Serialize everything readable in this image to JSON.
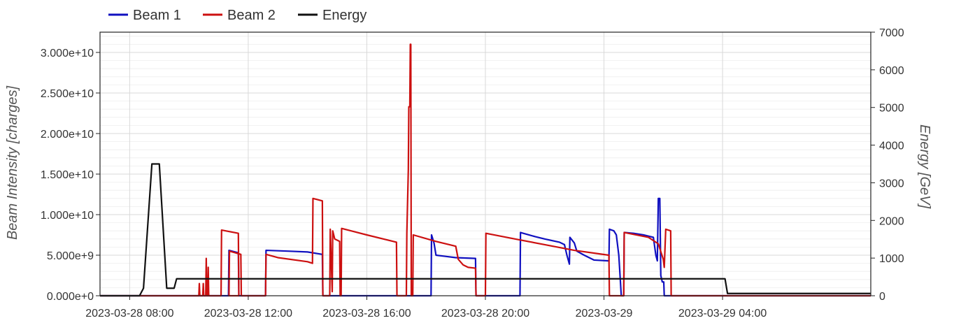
{
  "chart_data": {
    "type": "line",
    "title": "",
    "legend": {
      "placement": "top-left",
      "entries": [
        {
          "name": "Beam 1",
          "color": "#1010c0"
        },
        {
          "name": "Beam 2",
          "color": "#cc1010"
        },
        {
          "name": "Energy",
          "color": "#111111"
        }
      ]
    },
    "xaxis": {
      "range": [
        "2023-03-28 07:00",
        "2023-03-29 09:00"
      ],
      "ticks": [
        {
          "t": "2023-03-28 08:00",
          "label": "2023-03-28 08:00"
        },
        {
          "t": "2023-03-28 12:00",
          "label": "2023-03-28 12:00"
        },
        {
          "t": "2023-03-28 16:00",
          "label": "2023-03-28 16:00"
        },
        {
          "t": "2023-03-28 20:00",
          "label": "2023-03-28 20:00"
        },
        {
          "t": "2023-03-29 00:00",
          "label": "2023-03-29"
        },
        {
          "t": "2023-03-29 04:00",
          "label": "2023-03-29 04:00"
        }
      ]
    },
    "yaxis_left": {
      "label": "Beam Intensity [charges]",
      "range": [
        0,
        32500000000.0
      ],
      "ticks": [
        {
          "v": 0,
          "label": "0.000e+0"
        },
        {
          "v": 5000000000.0,
          "label": "5.000e+9"
        },
        {
          "v": 10000000000.0,
          "label": "1.000e+10"
        },
        {
          "v": 15000000000.0,
          "label": "1.500e+10"
        },
        {
          "v": 20000000000.0,
          "label": "2.000e+10"
        },
        {
          "v": 25000000000.0,
          "label": "2.500e+10"
        },
        {
          "v": 30000000000.0,
          "label": "3.000e+10"
        }
      ]
    },
    "yaxis_right": {
      "label": "Energy [GeV]",
      "range": [
        0,
        7000
      ],
      "ticks": [
        {
          "v": 0,
          "label": "0"
        },
        {
          "v": 1000,
          "label": "1000"
        },
        {
          "v": 2000,
          "label": "2000"
        },
        {
          "v": 3000,
          "label": "3000"
        },
        {
          "v": 4000,
          "label": "4000"
        },
        {
          "v": 5000,
          "label": "5000"
        },
        {
          "v": 6000,
          "label": "6000"
        },
        {
          "v": 7000,
          "label": "7000"
        }
      ]
    },
    "grid": true,
    "series": [
      {
        "name": "Beam 1",
        "axis": "left",
        "color": "#1010c0",
        "points": [
          [
            "2023-03-28 07:00",
            0
          ],
          [
            "2023-03-28 11:20",
            0
          ],
          [
            "2023-03-28 11:21",
            5600000000.0
          ],
          [
            "2023-03-28 11:40",
            5300000000.0
          ],
          [
            "2023-03-28 11:41",
            0
          ],
          [
            "2023-03-28 12:35",
            0
          ],
          [
            "2023-03-28 12:36",
            5600000000.0
          ],
          [
            "2023-03-28 13:20",
            5500000000.0
          ],
          [
            "2023-03-28 14:00",
            5400000000.0
          ],
          [
            "2023-03-28 14:20",
            5200000000.0
          ],
          [
            "2023-03-28 14:30",
            5100000000.0
          ],
          [
            "2023-03-28 14:31",
            0
          ],
          [
            "2023-03-28 18:10",
            0
          ],
          [
            "2023-03-28 18:11",
            7500000000.0
          ],
          [
            "2023-03-28 18:16",
            6500000000.0
          ],
          [
            "2023-03-28 18:20",
            5000000000.0
          ],
          [
            "2023-03-28 19:00",
            4700000000.0
          ],
          [
            "2023-03-28 19:40",
            4600000000.0
          ],
          [
            "2023-03-28 19:41",
            0
          ],
          [
            "2023-03-28 21:10",
            0
          ],
          [
            "2023-03-28 21:11",
            7800000000.0
          ],
          [
            "2023-03-28 21:40",
            7300000000.0
          ],
          [
            "2023-03-28 22:00",
            7000000000.0
          ],
          [
            "2023-03-28 22:30",
            6600000000.0
          ],
          [
            "2023-03-28 22:40",
            6300000000.0
          ],
          [
            "2023-03-28 22:45",
            5000000000.0
          ],
          [
            "2023-03-28 22:50",
            3900000000.0
          ],
          [
            "2023-03-28 22:51",
            7200000000.0
          ],
          [
            "2023-03-28 23:00",
            6500000000.0
          ],
          [
            "2023-03-28 23:05",
            5500000000.0
          ],
          [
            "2023-03-28 23:20",
            5000000000.0
          ],
          [
            "2023-03-28 23:40",
            4400000000.0
          ],
          [
            "2023-03-29 00:10",
            4300000000.0
          ],
          [
            "2023-03-29 00:11",
            8200000000.0
          ],
          [
            "2023-03-29 00:20",
            8000000000.0
          ],
          [
            "2023-03-29 00:25",
            7500000000.0
          ],
          [
            "2023-03-29 00:30",
            5000000000.0
          ],
          [
            "2023-03-29 00:35",
            0
          ],
          [
            "2023-03-29 00:40",
            0
          ],
          [
            "2023-03-29 00:41",
            7800000000.0
          ],
          [
            "2023-03-29 01:00",
            7700000000.0
          ],
          [
            "2023-03-29 01:20",
            7500000000.0
          ],
          [
            "2023-03-29 01:40",
            7200000000.0
          ],
          [
            "2023-03-29 01:45",
            5000000000.0
          ],
          [
            "2023-03-29 01:48",
            4300000000.0
          ],
          [
            "2023-03-29 01:50",
            12000000000.0
          ],
          [
            "2023-03-29 01:53",
            12000000000.0
          ],
          [
            "2023-03-29 01:55",
            2500000000.0
          ],
          [
            "2023-03-29 01:58",
            1700000000.0
          ],
          [
            "2023-03-29 02:01",
            1700000000.0
          ],
          [
            "2023-03-29 02:02",
            0
          ],
          [
            "2023-03-29 09:00",
            0
          ]
        ]
      },
      {
        "name": "Beam 2",
        "axis": "left",
        "color": "#cc1010",
        "points": [
          [
            "2023-03-28 07:00",
            0
          ],
          [
            "2023-03-28 10:20",
            0
          ],
          [
            "2023-03-28 10:21",
            1500000000.0
          ],
          [
            "2023-03-28 10:22",
            0
          ],
          [
            "2023-03-28 10:28",
            0
          ],
          [
            "2023-03-28 10:29",
            1500000000.0
          ],
          [
            "2023-03-28 10:30",
            0
          ],
          [
            "2023-03-28 10:34",
            0
          ],
          [
            "2023-03-28 10:35",
            4600000000.0
          ],
          [
            "2023-03-28 10:36",
            0
          ],
          [
            "2023-03-28 10:38",
            0
          ],
          [
            "2023-03-28 10:39",
            3500000000.0
          ],
          [
            "2023-03-28 10:40",
            0
          ],
          [
            "2023-03-28 11:05",
            0
          ],
          [
            "2023-03-28 11:06",
            8100000000.0
          ],
          [
            "2023-03-28 11:40",
            7700000000.0
          ],
          [
            "2023-03-28 11:41",
            0
          ],
          [
            "2023-03-28 11:21",
            0
          ],
          [
            "2023-03-28 11:22",
            5500000000.0
          ],
          [
            "2023-03-28 11:45",
            5100000000.0
          ],
          [
            "2023-03-28 11:46",
            0
          ],
          [
            "2023-03-28 12:35",
            0
          ],
          [
            "2023-03-28 12:36",
            5100000000.0
          ],
          [
            "2023-03-28 13:00",
            4700000000.0
          ],
          [
            "2023-03-28 14:00",
            4200000000.0
          ],
          [
            "2023-03-28 14:10",
            4000000000.0
          ],
          [
            "2023-03-28 14:11",
            12000000000.0
          ],
          [
            "2023-03-28 14:30",
            11700000000.0
          ],
          [
            "2023-03-28 14:31",
            0
          ],
          [
            "2023-03-28 14:45",
            0
          ],
          [
            "2023-03-28 14:46",
            8200000000.0
          ],
          [
            "2023-03-28 14:50",
            500000000.0
          ],
          [
            "2023-03-28 14:51",
            8000000000.0
          ],
          [
            "2023-03-28 14:55",
            7000000000.0
          ],
          [
            "2023-03-28 15:05",
            6700000000.0
          ],
          [
            "2023-03-28 15:06",
            0
          ],
          [
            "2023-03-28 15:08",
            0
          ],
          [
            "2023-03-28 15:09",
            8300000000.0
          ],
          [
            "2023-03-28 16:00",
            7500000000.0
          ],
          [
            "2023-03-28 16:40",
            6900000000.0
          ],
          [
            "2023-03-28 17:00",
            6600000000.0
          ],
          [
            "2023-03-28 17:01",
            0
          ],
          [
            "2023-03-28 17:20",
            0
          ],
          [
            "2023-03-28 17:21",
            7700000000.0
          ],
          [
            "2023-03-28 17:24",
            15500000000.0
          ],
          [
            "2023-03-28 17:25",
            23300000000.0
          ],
          [
            "2023-03-28 17:27",
            23300000000.0
          ],
          [
            "2023-03-28 17:28",
            31000000000.0
          ],
          [
            "2023-03-28 17:29",
            31000000000.0
          ],
          [
            "2023-03-28 17:30",
            0
          ],
          [
            "2023-03-28 17:33",
            0
          ],
          [
            "2023-03-28 17:34",
            7500000000.0
          ],
          [
            "2023-03-28 18:20",
            6700000000.0
          ],
          [
            "2023-03-28 19:00",
            6100000000.0
          ],
          [
            "2023-03-28 19:05",
            4500000000.0
          ],
          [
            "2023-03-28 19:15",
            3800000000.0
          ],
          [
            "2023-03-28 19:25",
            3500000000.0
          ],
          [
            "2023-03-28 19:40",
            3400000000.0
          ],
          [
            "2023-03-28 19:41",
            0
          ],
          [
            "2023-03-28 20:00",
            0
          ],
          [
            "2023-03-28 20:01",
            7700000000.0
          ],
          [
            "2023-03-28 21:00",
            7000000000.0
          ],
          [
            "2023-03-28 22:00",
            6300000000.0
          ],
          [
            "2023-03-28 23:00",
            5600000000.0
          ],
          [
            "2023-03-29 00:10",
            5000000000.0
          ],
          [
            "2023-03-29 00:11",
            0
          ],
          [
            "2023-03-29 00:40",
            0
          ],
          [
            "2023-03-29 00:41",
            7800000000.0
          ],
          [
            "2023-03-29 01:30",
            7200000000.0
          ],
          [
            "2023-03-29 01:50",
            6400000000.0
          ],
          [
            "2023-03-29 02:00",
            4500000000.0
          ],
          [
            "2023-03-29 02:02",
            3500000000.0
          ],
          [
            "2023-03-29 02:05",
            8200000000.0
          ],
          [
            "2023-03-29 02:15",
            8000000000.0
          ],
          [
            "2023-03-29 02:16",
            0
          ],
          [
            "2023-03-29 09:00",
            0
          ]
        ]
      },
      {
        "name": "Energy",
        "axis": "right",
        "color": "#111111",
        "points": [
          [
            "2023-03-28 07:00",
            0
          ],
          [
            "2023-03-28 08:20",
            0
          ],
          [
            "2023-03-28 08:28",
            200
          ],
          [
            "2023-03-28 08:45",
            3500
          ],
          [
            "2023-03-28 09:00",
            3500
          ],
          [
            "2023-03-28 09:15",
            200
          ],
          [
            "2023-03-28 09:30",
            200
          ],
          [
            "2023-03-28 09:35",
            450
          ],
          [
            "2023-03-29 04:05",
            450
          ],
          [
            "2023-03-29 04:10",
            60
          ],
          [
            "2023-03-29 09:00",
            60
          ]
        ]
      }
    ]
  }
}
